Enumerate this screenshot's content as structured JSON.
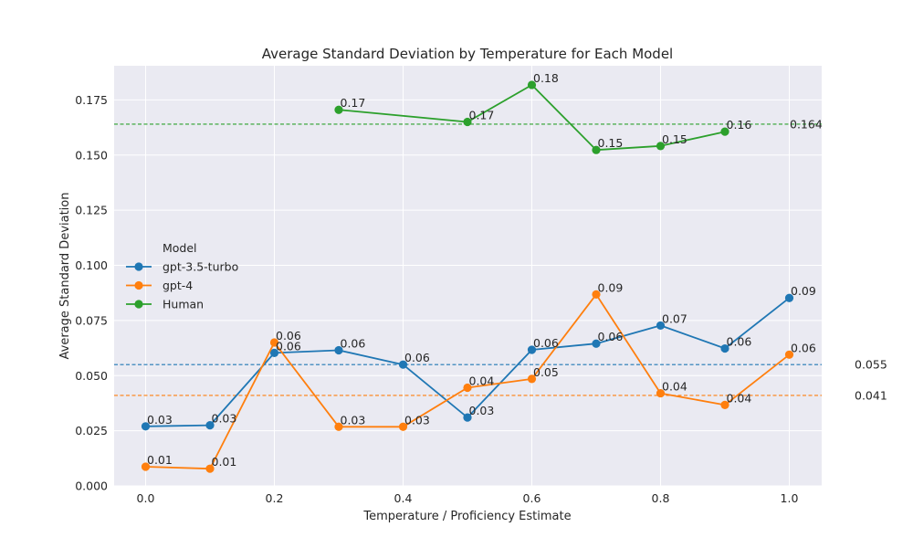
{
  "chart_data": {
    "type": "line",
    "title": "Average Standard Deviation by Temperature for Each Model",
    "xlabel": "Temperature / Proficiency Estimate",
    "ylabel": "Average Standard Deviation",
    "xlim": [
      -0.05,
      1.05
    ],
    "ylim": [
      0.0,
      0.19
    ],
    "x_ticks": [
      0.0,
      0.2,
      0.4,
      0.6,
      0.8,
      1.0
    ],
    "x_tick_labels": [
      "0.0",
      "0.2",
      "0.4",
      "0.6",
      "0.8",
      "1.0"
    ],
    "y_ticks": [
      0.0,
      0.025,
      0.05,
      0.075,
      0.1,
      0.125,
      0.15,
      0.175
    ],
    "y_tick_labels": [
      "0.000",
      "0.025",
      "0.050",
      "0.075",
      "0.100",
      "0.125",
      "0.150",
      "0.175"
    ],
    "grid": true,
    "legend": {
      "title": "Model",
      "placement": "center-left"
    },
    "series": [
      {
        "name": "gpt-3.5-turbo",
        "color": "#1f77b4",
        "x": [
          0.0,
          0.1,
          0.2,
          0.3,
          0.4,
          0.5,
          0.6,
          0.7,
          0.8,
          0.9,
          1.0
        ],
        "y": [
          0.027,
          0.0275,
          0.0603,
          0.0615,
          0.055,
          0.031,
          0.0617,
          0.0645,
          0.0727,
          0.0623,
          0.0852
        ],
        "labels": [
          "0.03",
          "0.03",
          "0.06",
          "0.06",
          "0.06",
          "0.03",
          "0.06",
          "0.06",
          "0.07",
          "0.06",
          "0.09"
        ]
      },
      {
        "name": "gpt-4",
        "color": "#ff7f0e",
        "x": [
          0.0,
          0.1,
          0.2,
          0.3,
          0.4,
          0.5,
          0.6,
          0.7,
          0.8,
          0.9,
          1.0
        ],
        "y": [
          0.0087,
          0.0078,
          0.065,
          0.0268,
          0.0268,
          0.0445,
          0.0485,
          0.0868,
          0.042,
          0.0367,
          0.0595
        ],
        "labels": [
          "0.01",
          "0.01",
          "0.06",
          "0.03",
          "0.03",
          "0.04",
          "0.05",
          "0.09",
          "0.04",
          "0.04",
          "0.06"
        ]
      },
      {
        "name": "Human",
        "color": "#2ca02c",
        "x": [
          0.3,
          0.5,
          0.6,
          0.7,
          0.8,
          0.9
        ],
        "y": [
          0.1705,
          0.165,
          0.1818,
          0.1523,
          0.1541,
          0.1606
        ],
        "labels": [
          "0.17",
          "0.17",
          "0.18",
          "0.15",
          "0.15",
          "0.16"
        ]
      }
    ],
    "reference_lines": [
      {
        "value": 0.164,
        "label": "0.164",
        "color": "#2ca02c"
      },
      {
        "value": 0.055,
        "label": "0.055",
        "color": "#1f77b4"
      },
      {
        "value": 0.041,
        "label": "0.041",
        "color": "#ff7f0e"
      }
    ]
  }
}
